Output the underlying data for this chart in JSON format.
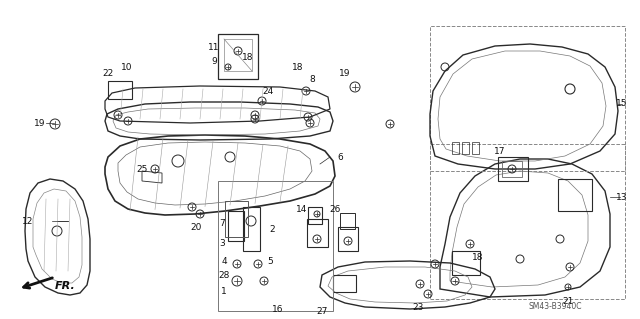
{
  "background_color": "#ffffff",
  "diagram_code": "SM43-B3940C",
  "line_color": "#2a2a2a",
  "label_color": "#111111",
  "fs": 6.5
}
